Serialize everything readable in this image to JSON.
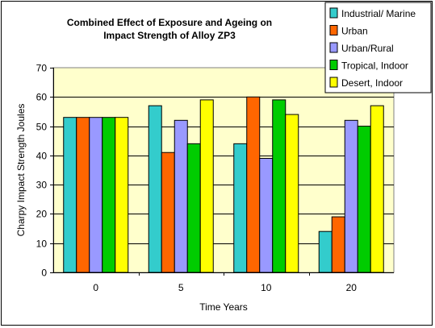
{
  "chart_data": {
    "type": "bar",
    "title_lines": [
      "Combined Effect of Exposure and Ageing on",
      "Impact Strength of Alloy ZP3"
    ],
    "xlabel": "Time Years",
    "ylabel": "Charpy Impact Strength Joules",
    "categories": [
      "0",
      "5",
      "10",
      "20"
    ],
    "ylim": [
      0,
      70
    ],
    "yticks": [
      0,
      10,
      20,
      30,
      40,
      50,
      60,
      70
    ],
    "grid": true,
    "legend_position": "top-right",
    "plot_background": "#FFFFCC",
    "series": [
      {
        "name": "Industrial/ Marine",
        "color": "#33CCCC",
        "values": [
          53,
          57,
          44,
          14
        ]
      },
      {
        "name": "Urban",
        "color": "#FF6600",
        "values": [
          53,
          41,
          60,
          19
        ]
      },
      {
        "name": "Urban/Rural",
        "color": "#9999FF",
        "values": [
          53,
          52,
          39,
          52
        ]
      },
      {
        "name": "Tropical, Indoor",
        "color": "#00CC00",
        "values": [
          53,
          44,
          59,
          50
        ]
      },
      {
        "name": "Desert, Indoor",
        "color": "#FFFF00",
        "values": [
          53,
          59,
          54,
          57
        ]
      }
    ]
  }
}
